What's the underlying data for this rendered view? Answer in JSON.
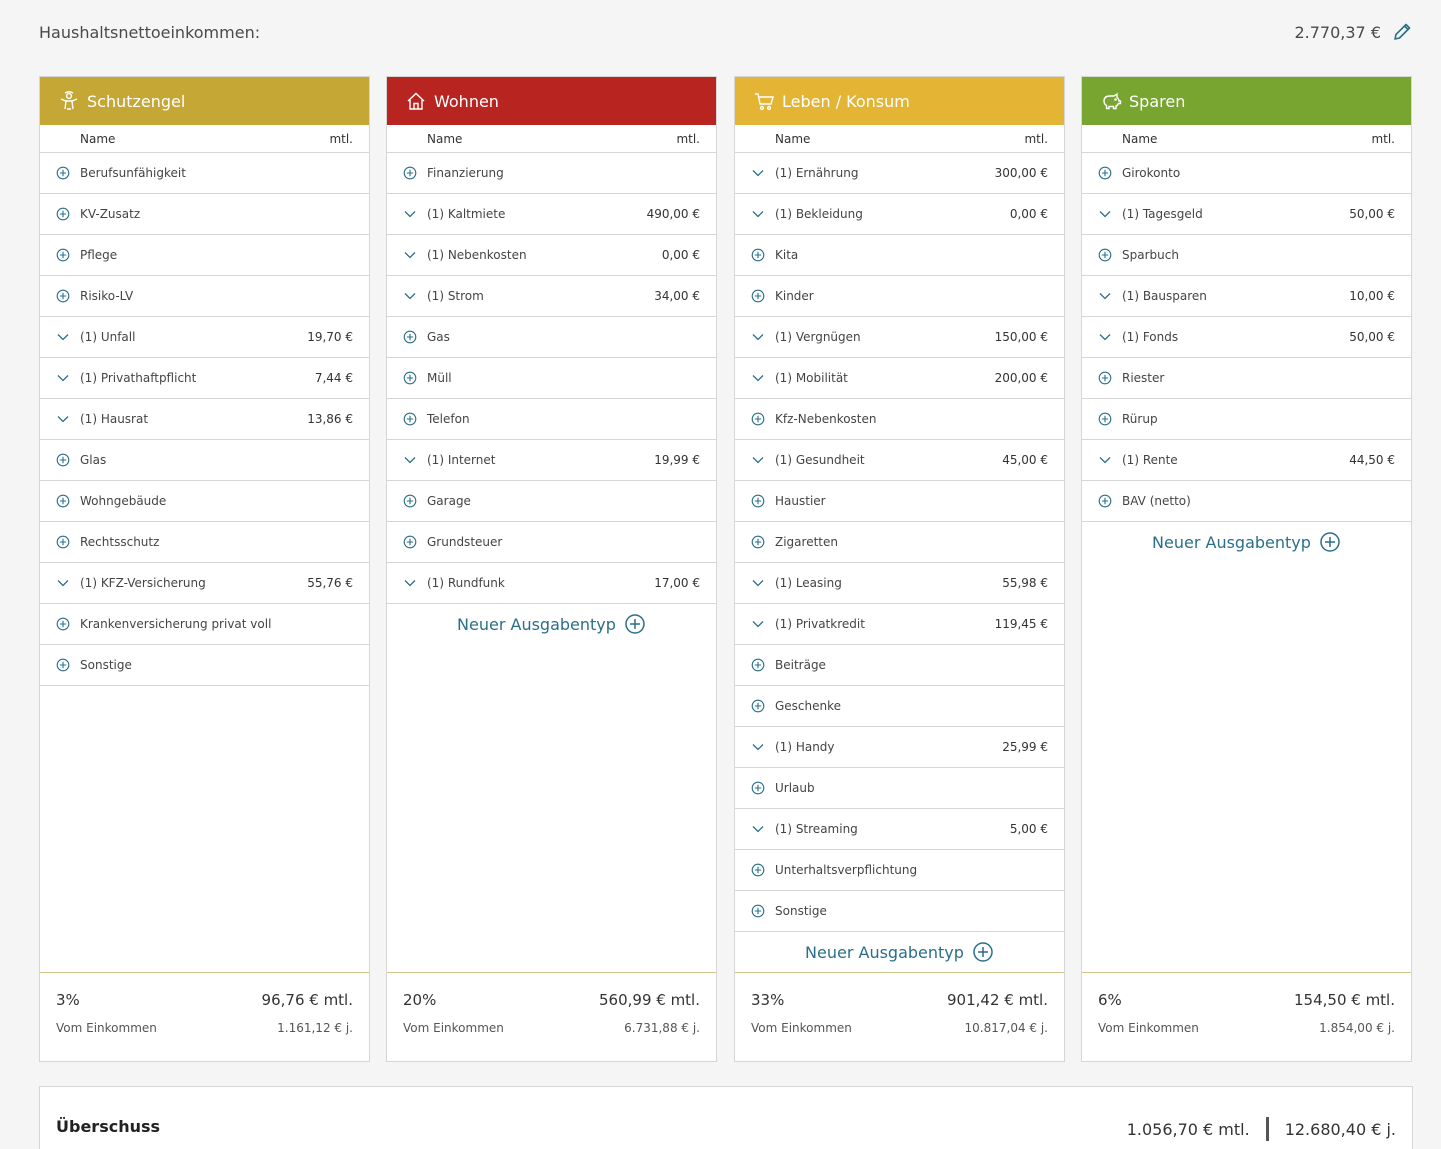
{
  "header": {
    "income_label": "Haushaltsnettoeinkommen:",
    "income_value": "2.770,37 €"
  },
  "columns": [
    {
      "title": "Schutzengel",
      "color": "#c4a734",
      "icon": "guardian-angel-icon",
      "col_name": "Name",
      "col_mtl": "mtl.",
      "rows": [
        {
          "label": "Berufsunfähigkeit",
          "value": "",
          "icon": "plus-circle-icon"
        },
        {
          "label": "KV-Zusatz",
          "value": "",
          "icon": "plus-circle-icon"
        },
        {
          "label": "Pflege",
          "value": "",
          "icon": "plus-circle-icon"
        },
        {
          "label": "Risiko-LV",
          "value": "",
          "icon": "plus-circle-icon"
        },
        {
          "label": "(1) Unfall",
          "value": "19,70 €",
          "icon": "chevron-down-icon"
        },
        {
          "label": "(1) Privathaftpflicht",
          "value": "7,44 €",
          "icon": "chevron-down-icon"
        },
        {
          "label": "(1) Hausrat",
          "value": "13,86 €",
          "icon": "chevron-down-icon"
        },
        {
          "label": "Glas",
          "value": "",
          "icon": "plus-circle-icon"
        },
        {
          "label": "Wohngebäude",
          "value": "",
          "icon": "plus-circle-icon"
        },
        {
          "label": "Rechtsschutz",
          "value": "",
          "icon": "plus-circle-icon"
        },
        {
          "label": "(1) KFZ-Versicherung",
          "value": "55,76 €",
          "icon": "chevron-down-icon"
        },
        {
          "label": "Krankenversicherung privat voll",
          "value": "",
          "icon": "plus-circle-icon"
        },
        {
          "label": "Sonstige",
          "value": "",
          "icon": "plus-circle-icon"
        }
      ],
      "new_type": "",
      "footer": {
        "percent": "3%",
        "monthly": "96,76 € mtl.",
        "caption": "Vom Einkommen",
        "yearly": "1.161,12 € j."
      }
    },
    {
      "title": "Wohnen",
      "color": "#b82420",
      "icon": "house-icon",
      "col_name": "Name",
      "col_mtl": "mtl.",
      "rows": [
        {
          "label": "Finanzierung",
          "value": "",
          "icon": "plus-circle-icon"
        },
        {
          "label": "(1) Kaltmiete",
          "value": "490,00 €",
          "icon": "chevron-down-icon"
        },
        {
          "label": "(1) Nebenkosten",
          "value": "0,00 €",
          "icon": "chevron-down-icon"
        },
        {
          "label": "(1) Strom",
          "value": "34,00 €",
          "icon": "chevron-down-icon"
        },
        {
          "label": "Gas",
          "value": "",
          "icon": "plus-circle-icon"
        },
        {
          "label": "Müll",
          "value": "",
          "icon": "plus-circle-icon"
        },
        {
          "label": "Telefon",
          "value": "",
          "icon": "plus-circle-icon"
        },
        {
          "label": "(1) Internet",
          "value": "19,99 €",
          "icon": "chevron-down-icon"
        },
        {
          "label": "Garage",
          "value": "",
          "icon": "plus-circle-icon"
        },
        {
          "label": "Grundsteuer",
          "value": "",
          "icon": "plus-circle-icon"
        },
        {
          "label": "(1) Rundfunk",
          "value": "17,00 €",
          "icon": "chevron-down-icon"
        }
      ],
      "new_type": "Neuer Ausgabentyp",
      "footer": {
        "percent": "20%",
        "monthly": "560,99 € mtl.",
        "caption": "Vom Einkommen",
        "yearly": "6.731,88 € j."
      }
    },
    {
      "title": "Leben / Konsum",
      "color": "#e4b534",
      "icon": "shopping-cart-icon",
      "col_name": "Name",
      "col_mtl": "mtl.",
      "rows": [
        {
          "label": "(1) Ernährung",
          "value": "300,00 €",
          "icon": "chevron-down-icon"
        },
        {
          "label": "(1) Bekleidung",
          "value": "0,00 €",
          "icon": "chevron-down-icon"
        },
        {
          "label": "Kita",
          "value": "",
          "icon": "plus-circle-icon"
        },
        {
          "label": "Kinder",
          "value": "",
          "icon": "plus-circle-icon"
        },
        {
          "label": "(1) Vergnügen",
          "value": "150,00 €",
          "icon": "chevron-down-icon"
        },
        {
          "label": "(1) Mobilität",
          "value": "200,00 €",
          "icon": "chevron-down-icon"
        },
        {
          "label": "Kfz-Nebenkosten",
          "value": "",
          "icon": "plus-circle-icon"
        },
        {
          "label": "(1) Gesundheit",
          "value": "45,00 €",
          "icon": "chevron-down-icon"
        },
        {
          "label": "Haustier",
          "value": "",
          "icon": "plus-circle-icon"
        },
        {
          "label": "Zigaretten",
          "value": "",
          "icon": "plus-circle-icon"
        },
        {
          "label": "(1) Leasing",
          "value": "55,98 €",
          "icon": "chevron-down-icon"
        },
        {
          "label": "(1) Privatkredit",
          "value": "119,45 €",
          "icon": "chevron-down-icon"
        },
        {
          "label": "Beiträge",
          "value": "",
          "icon": "plus-circle-icon"
        },
        {
          "label": "Geschenke",
          "value": "",
          "icon": "plus-circle-icon"
        },
        {
          "label": "(1) Handy",
          "value": "25,99 €",
          "icon": "chevron-down-icon"
        },
        {
          "label": "Urlaub",
          "value": "",
          "icon": "plus-circle-icon"
        },
        {
          "label": "(1) Streaming",
          "value": "5,00 €",
          "icon": "chevron-down-icon"
        },
        {
          "label": "Unterhaltsverpflichtung",
          "value": "",
          "icon": "plus-circle-icon"
        },
        {
          "label": "Sonstige",
          "value": "",
          "icon": "plus-circle-icon"
        }
      ],
      "new_type": "Neuer Ausgabentyp",
      "footer": {
        "percent": "33%",
        "monthly": "901,42 € mtl.",
        "caption": "Vom Einkommen",
        "yearly": "10.817,04 € j."
      }
    },
    {
      "title": "Sparen",
      "color": "#78a430",
      "icon": "piggy-bank-icon",
      "col_name": "Name",
      "col_mtl": "mtl.",
      "rows": [
        {
          "label": "Girokonto",
          "value": "",
          "icon": "plus-circle-icon"
        },
        {
          "label": "(1) Tagesgeld",
          "value": "50,00 €",
          "icon": "chevron-down-icon"
        },
        {
          "label": "Sparbuch",
          "value": "",
          "icon": "plus-circle-icon"
        },
        {
          "label": "(1) Bausparen",
          "value": "10,00 €",
          "icon": "chevron-down-icon"
        },
        {
          "label": "(1) Fonds",
          "value": "50,00 €",
          "icon": "chevron-down-icon"
        },
        {
          "label": "Riester",
          "value": "",
          "icon": "plus-circle-icon"
        },
        {
          "label": "Rürup",
          "value": "",
          "icon": "plus-circle-icon"
        },
        {
          "label": "(1) Rente",
          "value": "44,50 €",
          "icon": "chevron-down-icon"
        },
        {
          "label": "BAV (netto)",
          "value": "",
          "icon": "plus-circle-icon"
        }
      ],
      "new_type": "Neuer Ausgabentyp",
      "footer": {
        "percent": "6%",
        "monthly": "154,50 € mtl.",
        "caption": "Vom Einkommen",
        "yearly": "1.854,00 € j."
      }
    }
  ],
  "surplus": {
    "label": "Überschuss",
    "monthly": "1.056,70 € mtl.",
    "yearly": "12.680,40 € j."
  },
  "colors": {
    "accent": "#2a6f8a",
    "border": "#d6d6d6"
  }
}
